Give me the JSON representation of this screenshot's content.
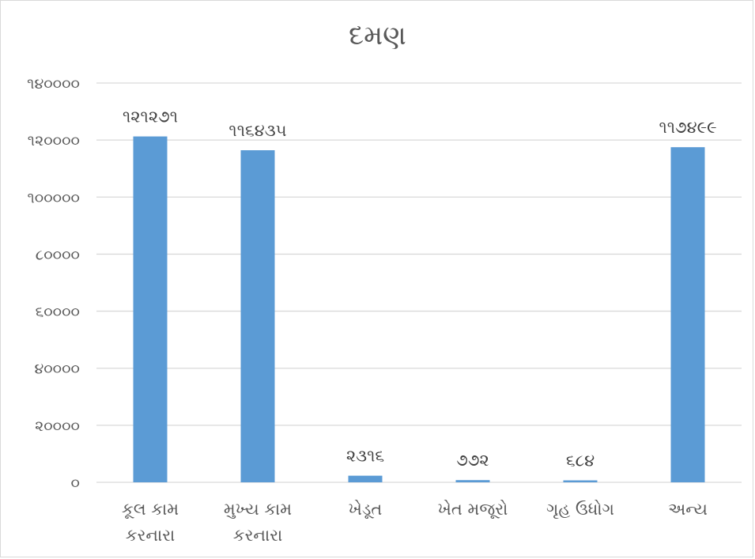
{
  "chart_data": {
    "type": "bar",
    "title": "દમણ",
    "categories": [
      [
        "કૂલ  કામ",
        "કરનારા"
      ],
      [
        "મુખ્ય કામ",
        "કરનારા"
      ],
      [
        "ખેડૂત"
      ],
      [
        "ખેત મજૂરો"
      ],
      [
        "ગૃહ ઉધોગ"
      ],
      [
        "અન્ય"
      ]
    ],
    "values": [
      121271,
      116435,
      2316,
      772,
      684,
      117499
    ],
    "data_labels": [
      "૧૨૧૨૭૧",
      "૧૧૬૪૩૫",
      "૨૩૧૬",
      "૭૭૨",
      "૬૮૪",
      "૧૧૭૪૯૯"
    ],
    "ylim": [
      0,
      140000
    ],
    "yticks": [
      0,
      20000,
      40000,
      60000,
      80000,
      100000,
      120000,
      140000
    ],
    "ytick_labels": [
      "૦",
      "૨૦૦૦૦",
      "૪૦૦૦૦",
      "૬૦૦૦૦",
      "૮૦૦૦૦",
      "૧૦૦૦૦૦",
      "૧૨૦૦૦૦",
      "૧૪૦૦૦૦"
    ],
    "grid": true,
    "bar_color": "#5b9bd5",
    "grid_color": "#d9d9d9",
    "legend": "none"
  }
}
